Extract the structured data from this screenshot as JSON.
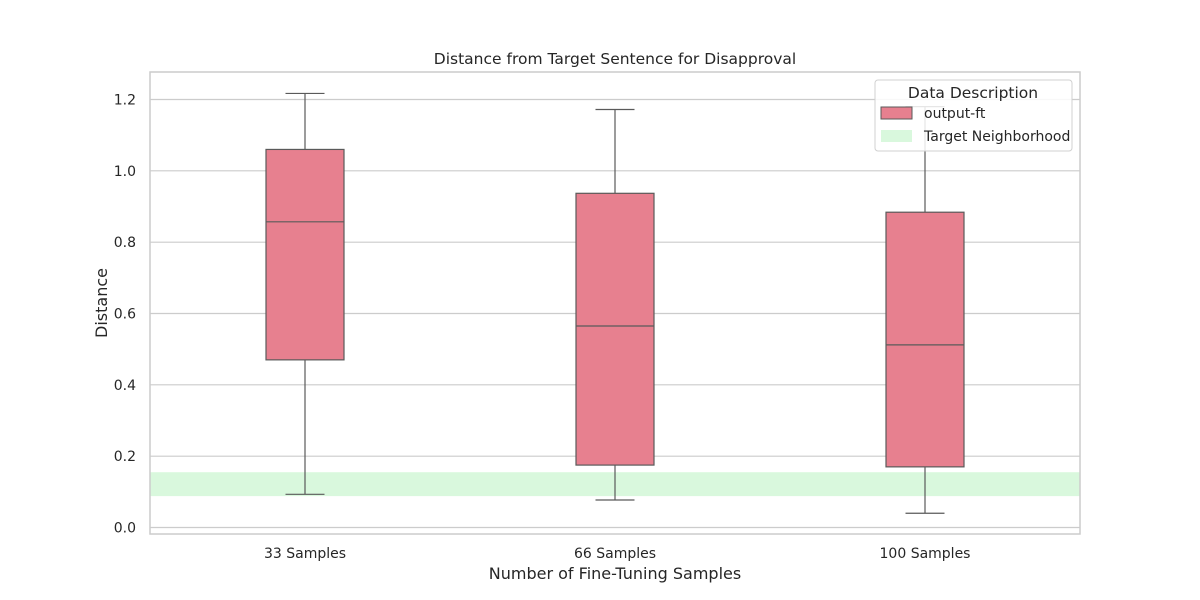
{
  "chart_data": {
    "type": "box",
    "title": "Distance from Target Sentence for Disapproval",
    "xlabel": "Number of Fine-Tuning Samples",
    "ylabel": "Distance",
    "categories": [
      "33 Samples",
      "66 Samples",
      "100 Samples"
    ],
    "ylim": [
      -0.02,
      1.28
    ],
    "yticks": [
      0.0,
      0.2,
      0.4,
      0.6,
      0.8,
      1.0,
      1.2
    ],
    "ytick_labels": [
      "0.0",
      "0.2",
      "0.4",
      "0.6",
      "0.8",
      "1.0",
      "1.2"
    ],
    "grid": true,
    "series": [
      {
        "name": "output-ft",
        "color": "#e7808f",
        "boxes": [
          {
            "category": "33 Samples",
            "whisker_low": 0.093,
            "q1": 0.47,
            "median": 0.857,
            "q3": 1.06,
            "whisker_high": 1.217
          },
          {
            "category": "66 Samples",
            "whisker_low": 0.077,
            "q1": 0.175,
            "median": 0.565,
            "q3": 0.937,
            "whisker_high": 1.172
          },
          {
            "category": "100 Samples",
            "whisker_low": 0.04,
            "q1": 0.17,
            "median": 0.512,
            "q3": 0.884,
            "whisker_high": 1.18
          }
        ]
      }
    ],
    "target_band": {
      "name": "Target Neighborhood",
      "low": 0.088,
      "high": 0.155,
      "color": "#d9f8dd"
    },
    "legend": {
      "title": "Data Description",
      "position": "top-right",
      "entries": [
        "output-ft",
        "Target Neighborhood"
      ]
    }
  }
}
